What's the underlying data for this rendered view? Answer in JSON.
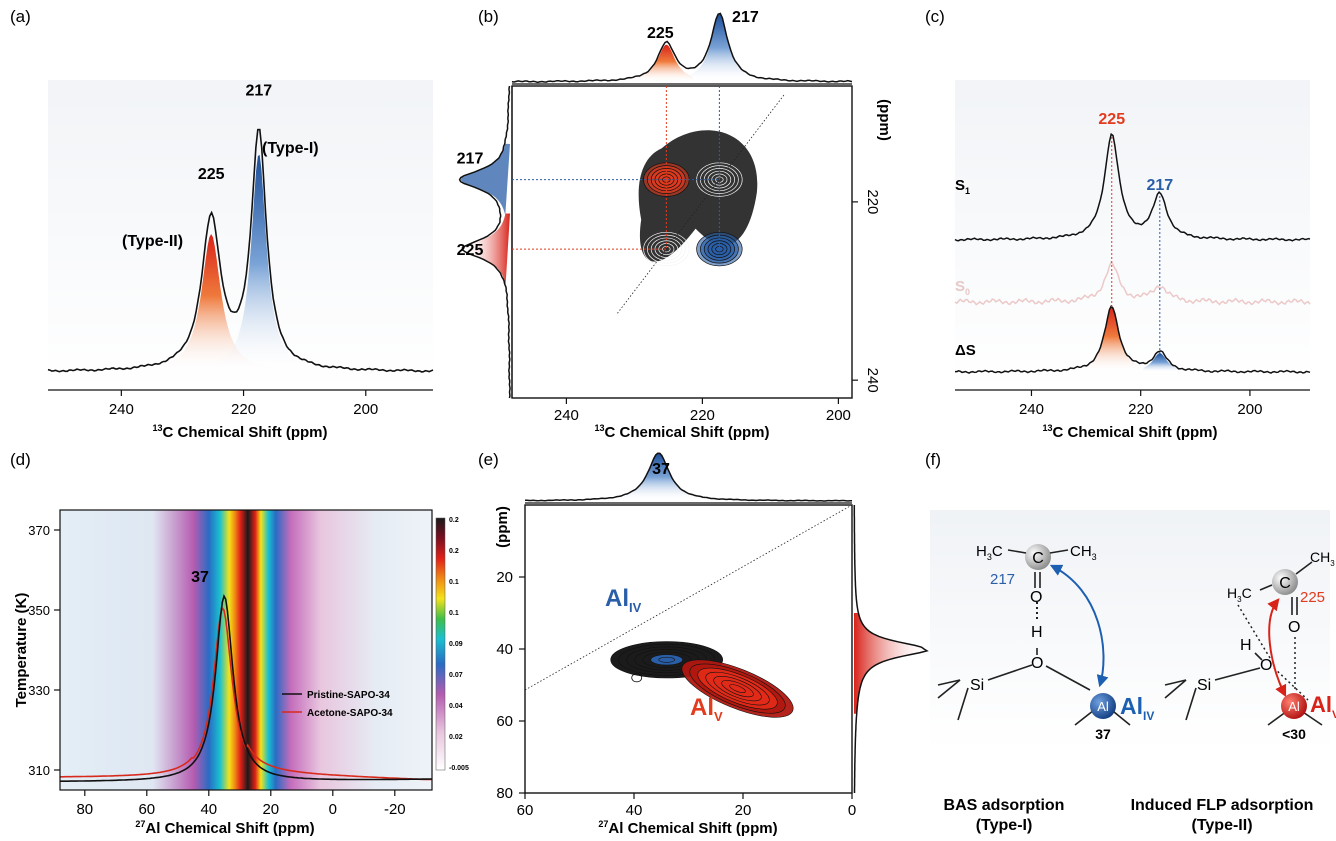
{
  "figure": {
    "panel_letters": [
      "(a)",
      "(b)",
      "(c)",
      "(d)",
      "(e)",
      "(f)"
    ]
  },
  "chart_data": [
    {
      "panel": "a",
      "type": "line",
      "xlabel_sup": "13",
      "xlabel": "C Chemical Shift (ppm)",
      "xlim": [
        252,
        189
      ],
      "xticks": [
        240,
        220,
        200
      ],
      "peaks": [
        {
          "label": "225",
          "x": 225.3,
          "height": 0.6,
          "tag": "(Type-II)",
          "color": "#e23b1e"
        },
        {
          "label": "217",
          "x": 217.5,
          "height": 0.95,
          "tag": "(Type-I)",
          "color": "#2a5fa8"
        }
      ]
    },
    {
      "panel": "b",
      "type": "heatmap",
      "xlabel_sup": "13",
      "xlabel": "C Chemical Shift (ppm)",
      "ylabel": "(ppm)",
      "xlim": [
        248,
        198
      ],
      "ylim": [
        207,
        242
      ],
      "xticks": [
        240,
        220,
        200
      ],
      "yticks": [
        220,
        240
      ],
      "projection_peaks": [
        {
          "label": "225",
          "x": 225.3,
          "color": "#e23b1e"
        },
        {
          "label": "217",
          "x": 217.5,
          "color": "#2a5fa8"
        }
      ],
      "cross_peaks": [
        {
          "x": 225.3,
          "y": 217.5,
          "color": "#e23b1e"
        },
        {
          "x": 217.5,
          "y": 217.5,
          "color": "#111111"
        },
        {
          "x": 225.3,
          "y": 225.3,
          "color": "#111111"
        },
        {
          "x": 217.5,
          "y": 225.3,
          "color": "#2a5fa8"
        }
      ]
    },
    {
      "panel": "c",
      "type": "line",
      "xlabel_sup": "13",
      "xlabel": "C Chemical Shift (ppm)",
      "xlim": [
        254,
        189
      ],
      "xticks": [
        240,
        220,
        200
      ],
      "series": [
        {
          "name": "S",
          "sub": "1",
          "color": "#111111",
          "peaks": [
            [
              225.3,
              1.0
            ],
            [
              216.5,
              0.42
            ]
          ]
        },
        {
          "name": "S",
          "sub": "0",
          "color": "#e8c8c8",
          "peaks": [
            [
              225.3,
              0.35
            ],
            [
              216.5,
              0.15
            ]
          ]
        },
        {
          "name": "ΔS",
          "sub": "",
          "color": "#111111",
          "peaks": [
            [
              225.3,
              0.62
            ],
            [
              216.5,
              0.18
            ]
          ]
        }
      ],
      "peak_labels": [
        {
          "label": "225",
          "x": 225.3,
          "color": "#e23b1e"
        },
        {
          "label": "217",
          "x": 216.5,
          "color": "#2a5fa8"
        }
      ]
    },
    {
      "panel": "d",
      "type": "heatmap",
      "xlabel_sup": "27",
      "xlabel": "Al Chemical Shift (ppm)",
      "ylabel": "Temperature (K)",
      "xlim": [
        88,
        -32
      ],
      "ylim": [
        305,
        375
      ],
      "xticks": [
        80,
        60,
        40,
        20,
        0,
        -20
      ],
      "yticks": [
        310,
        330,
        350,
        370
      ],
      "colorbar_labels": [
        "0.2",
        "0.2",
        "0.1",
        "0.1",
        "0.09",
        "0.07",
        "0.04",
        "0.02",
        "-0.005"
      ],
      "peak_label": "37",
      "legend": [
        {
          "name": "Pristine-SAPO-34",
          "color": "#111111"
        },
        {
          "name": "Acetone-SAPO-34",
          "color": "#d82a1c"
        }
      ]
    },
    {
      "panel": "e",
      "type": "heatmap",
      "xlabel_sup": "27",
      "xlabel": "Al Chemical Shift (ppm)",
      "ylabel": "(ppm)",
      "xlim": [
        60,
        0
      ],
      "ylim": [
        0,
        80
      ],
      "xticks": [
        60,
        40,
        20,
        0
      ],
      "yticks": [
        20,
        40,
        60,
        80
      ],
      "projection_peak": "37",
      "labels": [
        {
          "main": "Al",
          "sub": "IV",
          "color": "#2a5fa8"
        },
        {
          "main": "Al",
          "sub": "V",
          "color": "#e23b1e"
        }
      ]
    }
  ],
  "panel_f": {
    "left": {
      "title_line1": "BAS adsorption",
      "title_line2": "(Type-I)",
      "shift": "217",
      "al_shift": "37",
      "al_label": "Al",
      "al_sub": "IV",
      "atoms": {
        "C": "C",
        "O": "O",
        "H": "H",
        "Si": "Si",
        "Al": "Al",
        "H3C": "H",
        "CH3": "CH"
      }
    },
    "right": {
      "title_line1": "Induced FLP adsorption",
      "title_line2": "(Type-II)",
      "shift": "225",
      "al_shift": "<30",
      "al_label": "Al",
      "al_sub": "V"
    }
  }
}
